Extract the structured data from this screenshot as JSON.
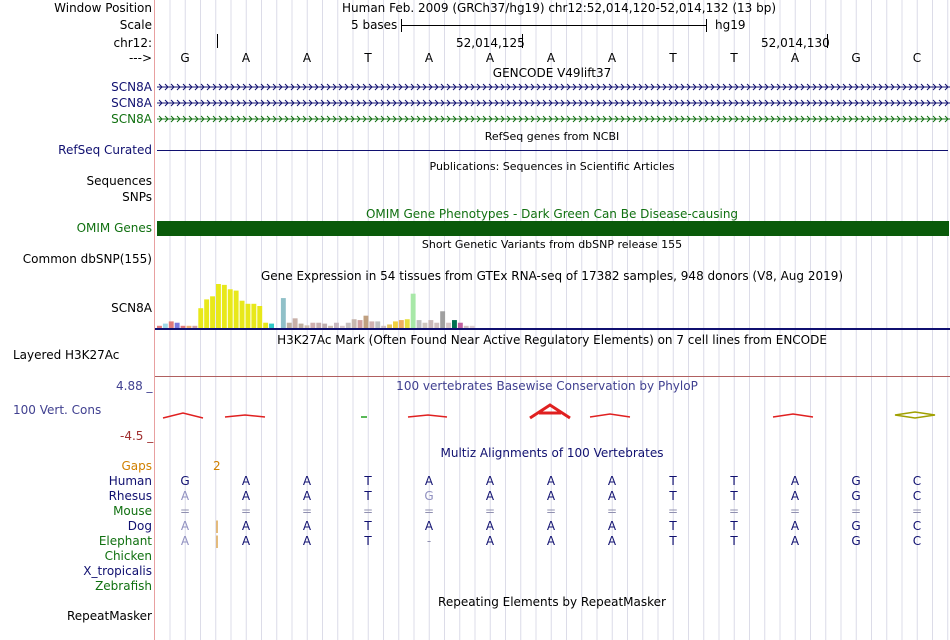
{
  "header": {
    "window_position_label": "Window Position",
    "window_position_value": "Human Feb. 2009 (GRCh37/hg19)   chr12:52,014,120-52,014,132 (13 bp)",
    "scale_label": "Scale",
    "scale_text": "5 bases",
    "scale_assembly": "hg19",
    "chrom_label": "chr12:",
    "pos_a": "52,014,125",
    "pos_b": "52,014,130",
    "strand_label": "--->"
  },
  "sequence": [
    "G",
    "A",
    "A",
    "T",
    "A",
    "A",
    "A",
    "A",
    "T",
    "T",
    "A",
    "G",
    "C"
  ],
  "tracks": {
    "gencode_title": "GENCODE V49lift37",
    "gencode_items": [
      {
        "label": "SCN8A",
        "color": "#101070"
      },
      {
        "label": "SCN8A",
        "color": "#101070"
      },
      {
        "label": "SCN8A",
        "color": "#107010"
      }
    ],
    "refseq_title": "RefSeq genes from NCBI",
    "refseq_label": "RefSeq Curated",
    "pubs_title": "Publications: Sequences in Scientific Articles",
    "sequences_label": "Sequences",
    "snps_label": "SNPs",
    "omim_title": "OMIM Gene Phenotypes - Dark Green Can Be Disease-causing",
    "omim_label": "OMIM Genes",
    "dbsnp_title": "Short Genetic Variants from dbSNP release 155",
    "dbsnp_label": "Common dbSNP(155)",
    "gtex_title": "Gene Expression in 54 tissues from GTEx RNA-seq of 17382 samples, 948 donors (V8, Aug 2019)",
    "gtex_label": "SCN8A",
    "h3k_title": "H3K27Ac Mark (Often Found Near Active Regulatory Elements) on 7 cell lines from ENCODE",
    "h3k_label": "Layered H3K27Ac",
    "phylop_title": "100 vertebrates Basewise Conservation by PhyloP",
    "phylop_label": "100 Vert. Cons",
    "phylop_max": "4.88 _",
    "phylop_min": "-4.5 _",
    "multiz_title": "Multiz Alignments of 100 Vertebrates",
    "gaps_label": "Gaps",
    "gaps_value": "2",
    "repeat_title": "Repeating Elements by RepeatMasker",
    "repeat_label": "RepeatMasker"
  },
  "gtex_bars": [
    {
      "v": 0.05,
      "c": "#e07a7a"
    },
    {
      "v": 0.1,
      "c": "#a0d8e8"
    },
    {
      "v": 0.15,
      "c": "#e07a7a"
    },
    {
      "v": 0.12,
      "c": "#7a7ae0"
    },
    {
      "v": 0.05,
      "c": "#e07a7a"
    },
    {
      "v": 0.05,
      "c": "#f0b070"
    },
    {
      "v": 0.05,
      "c": "#d0a0a0"
    },
    {
      "v": 0.45,
      "c": "#e8e81a"
    },
    {
      "v": 0.65,
      "c": "#e8e81a"
    },
    {
      "v": 0.72,
      "c": "#e8e81a"
    },
    {
      "v": 1.0,
      "c": "#e8e81a"
    },
    {
      "v": 0.98,
      "c": "#e8e81a"
    },
    {
      "v": 0.88,
      "c": "#e8e81a"
    },
    {
      "v": 0.85,
      "c": "#e8e81a"
    },
    {
      "v": 0.62,
      "c": "#e8e81a"
    },
    {
      "v": 0.55,
      "c": "#e8e81a"
    },
    {
      "v": 0.55,
      "c": "#e8e81a"
    },
    {
      "v": 0.5,
      "c": "#e8e81a"
    },
    {
      "v": 0.12,
      "c": "#e8e81a"
    },
    {
      "v": 0.1,
      "c": "#30c8c8"
    },
    {
      "v": 0.0,
      "c": "#ffffff"
    },
    {
      "v": 0.68,
      "c": "#90c0c8"
    },
    {
      "v": 0.12,
      "c": "#c0b0a0"
    },
    {
      "v": 0.22,
      "c": "#c8b0a8"
    },
    {
      "v": 0.1,
      "c": "#c0b0a0"
    },
    {
      "v": 0.06,
      "c": "#d0c0b0"
    },
    {
      "v": 0.12,
      "c": "#d0b0b0"
    },
    {
      "v": 0.12,
      "c": "#c8b0b0"
    },
    {
      "v": 0.1,
      "c": "#c0b0b0"
    },
    {
      "v": 0.05,
      "c": "#d0c0b0"
    },
    {
      "v": 0.12,
      "c": "#c8b8c0"
    },
    {
      "v": 0.05,
      "c": "#d8c8c8"
    },
    {
      "v": 0.12,
      "c": "#c8c0c0"
    },
    {
      "v": 0.2,
      "c": "#c8b8b0"
    },
    {
      "v": 0.18,
      "c": "#d0a0a0"
    },
    {
      "v": 0.28,
      "c": "#c0a080"
    },
    {
      "v": 0.15,
      "c": "#d0b0b0"
    },
    {
      "v": 0.15,
      "c": "#c0c0c0"
    },
    {
      "v": 0.05,
      "c": "#d0c0c0"
    },
    {
      "v": 0.08,
      "c": "#e8c860"
    },
    {
      "v": 0.15,
      "c": "#f0d040"
    },
    {
      "v": 0.18,
      "c": "#f0b060"
    },
    {
      "v": 0.2,
      "c": "#e8e040"
    },
    {
      "v": 0.78,
      "c": "#a8e8a8"
    },
    {
      "v": 0.18,
      "c": "#c0c0c0"
    },
    {
      "v": 0.12,
      "c": "#d0c8c0"
    },
    {
      "v": 0.18,
      "c": "#c8b8b8"
    },
    {
      "v": 0.12,
      "c": "#d0c0c0"
    },
    {
      "v": 0.38,
      "c": "#a0a0a0"
    },
    {
      "v": 0.12,
      "c": "#d8c8c8"
    },
    {
      "v": 0.18,
      "c": "#007050"
    },
    {
      "v": 0.12,
      "c": "#c060a0"
    },
    {
      "v": 0.05,
      "c": "#d0c0c0"
    },
    {
      "v": 0.05,
      "c": "#e0d0d0"
    }
  ],
  "alignments": [
    {
      "label": "Human",
      "color": "#101070",
      "seq": [
        "G",
        "A",
        "A",
        "T",
        "A",
        "A",
        "A",
        "A",
        "T",
        "T",
        "A",
        "G",
        "C"
      ],
      "gap": ""
    },
    {
      "label": "Rhesus",
      "color": "#101070",
      "seq": [
        "A",
        "A",
        "A",
        "T",
        "G",
        "A",
        "A",
        "A",
        "T",
        "T",
        "A",
        "G",
        "C"
      ],
      "gap": ""
    },
    {
      "label": "Mouse",
      "color": "#107010",
      "seq": [
        "=",
        "=",
        "=",
        "=",
        "=",
        "=",
        "=",
        "=",
        "=",
        "=",
        "=",
        "=",
        "="
      ],
      "gap": ""
    },
    {
      "label": "Dog",
      "color": "#101070",
      "seq": [
        "A",
        "A",
        "A",
        "T",
        "A",
        "A",
        "A",
        "A",
        "T",
        "T",
        "A",
        "G",
        "C"
      ],
      "gap": "|"
    },
    {
      "label": "Elephant",
      "color": "#107010",
      "seq": [
        "A",
        "A",
        "A",
        "T",
        "-",
        "A",
        "A",
        "A",
        "T",
        "T",
        "A",
        "G",
        "C"
      ],
      "gap": "|"
    },
    {
      "label": "Chicken",
      "color": "#107010",
      "seq": [],
      "gap": ""
    },
    {
      "label": "X_tropicalis",
      "color": "#101070",
      "seq": [],
      "gap": ""
    },
    {
      "label": "Zebrafish",
      "color": "#107010",
      "seq": [],
      "gap": ""
    }
  ],
  "colors": {
    "navy": "#101070",
    "green": "#107010",
    "omim": "#0a5a0a",
    "grid": "#d8d8e8",
    "gaps": "#d08000",
    "phylop": "#404090"
  }
}
